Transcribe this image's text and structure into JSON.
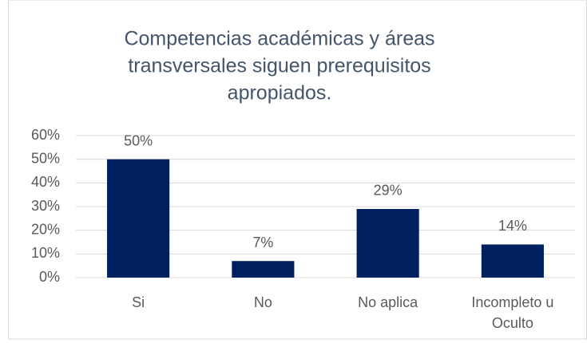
{
  "chart_data": {
    "type": "bar",
    "title": [
      "Competencias académicas y áreas",
      "transversales siguen prerequisitos",
      "apropiados."
    ],
    "categories": [
      "Si",
      "No",
      "No aplica",
      "Incompleto u Oculto"
    ],
    "values": [
      50,
      7,
      29,
      14
    ],
    "value_labels": [
      "50%",
      "7%",
      "29%",
      "14%"
    ],
    "color": "#002060",
    "ylim": [
      0,
      60
    ],
    "yticks": [
      {
        "value": 0,
        "label": "0%"
      },
      {
        "value": 10,
        "label": "10%"
      },
      {
        "value": 20,
        "label": "20%"
      },
      {
        "value": 30,
        "label": "30%"
      },
      {
        "value": 40,
        "label": "40%"
      },
      {
        "value": 50,
        "label": "50%"
      },
      {
        "value": 60,
        "label": "60%"
      }
    ],
    "grid": true
  }
}
